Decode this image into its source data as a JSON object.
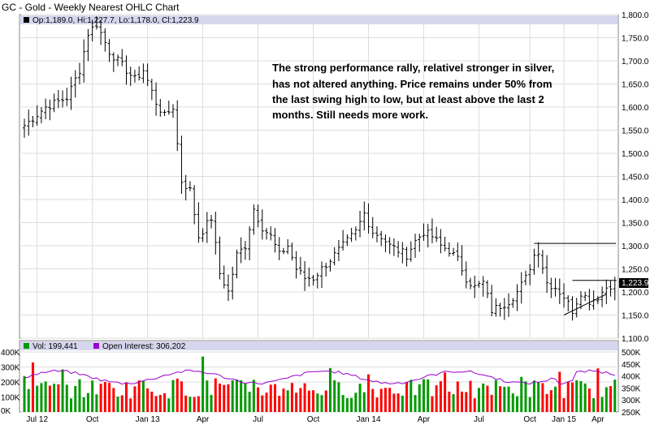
{
  "chart_data": {
    "type": "ohlc",
    "title": "GC - Gold - Weekly Nearest OHLC Chart",
    "ohlc_readout": "Op:1,189.0, Hi:1,227.7, Lo:1,178.0, Cl:1,223.9",
    "last_price_label": "1,223.9",
    "annotation": [
      "The strong performance rally, relativel stronger in silver,",
      "has not altered anything.  Price remains under 50% from",
      "the last swing high to low, but at least above the last 2",
      "months.  Still needs more work."
    ],
    "price_axis": {
      "min": 1100,
      "max": 1800,
      "ticks": [
        "1,800.0",
        "1,750.0",
        "1,700.0",
        "1,650.0",
        "1,600.0",
        "1,550.0",
        "1,500.0",
        "1,450.0",
        "1,400.0",
        "1,350.0",
        "1,300.0",
        "1,250.0",
        "1,200.0",
        "1,150.0",
        "1,100.0"
      ]
    },
    "x_labels": [
      "Jul 12",
      "Oct",
      "Jan 13",
      "Apr",
      "Jul",
      "Oct",
      "Jan 14",
      "Apr",
      "Jul",
      "Oct",
      "Jan 15",
      "Apr"
    ],
    "price_waypoints": [
      [
        0,
        1560
      ],
      [
        5,
        1600
      ],
      [
        10,
        1620
      ],
      [
        13,
        1680
      ],
      [
        15,
        1760
      ],
      [
        17,
        1780
      ],
      [
        20,
        1720
      ],
      [
        23,
        1690
      ],
      [
        26,
        1660
      ],
      [
        28,
        1680
      ],
      [
        31,
        1610
      ],
      [
        33,
        1580
      ],
      [
        35,
        1600
      ],
      [
        37,
        1440
      ],
      [
        39,
        1420
      ],
      [
        41,
        1320
      ],
      [
        44,
        1360
      ],
      [
        46,
        1240
      ],
      [
        48,
        1200
      ],
      [
        50,
        1280
      ],
      [
        52,
        1300
      ],
      [
        54,
        1380
      ],
      [
        56,
        1340
      ],
      [
        58,
        1320
      ],
      [
        60,
        1280
      ],
      [
        62,
        1300
      ],
      [
        64,
        1250
      ],
      [
        66,
        1230
      ],
      [
        68,
        1230
      ],
      [
        70,
        1250
      ],
      [
        72,
        1270
      ],
      [
        74,
        1290
      ],
      [
        76,
        1310
      ],
      [
        78,
        1330
      ],
      [
        80,
        1370
      ],
      [
        82,
        1330
      ],
      [
        84,
        1320
      ],
      [
        86,
        1300
      ],
      [
        88,
        1290
      ],
      [
        90,
        1280
      ],
      [
        92,
        1310
      ],
      [
        94,
        1330
      ],
      [
        96,
        1320
      ],
      [
        98,
        1300
      ],
      [
        100,
        1290
      ],
      [
        102,
        1270
      ],
      [
        104,
        1230
      ],
      [
        106,
        1210
      ],
      [
        108,
        1220
      ],
      [
        110,
        1160
      ],
      [
        112,
        1170
      ],
      [
        114,
        1180
      ],
      [
        116,
        1200
      ],
      [
        118,
        1230
      ],
      [
        120,
        1280
      ],
      [
        121,
        1290
      ],
      [
        123,
        1220
      ],
      [
        125,
        1210
      ],
      [
        127,
        1190
      ],
      [
        129,
        1160
      ],
      [
        131,
        1200
      ],
      [
        133,
        1180
      ],
      [
        135,
        1190
      ],
      [
        137,
        1210
      ],
      [
        139,
        1220
      ]
    ],
    "overlay_lines": [
      {
        "x1": 120,
        "y1": 1305,
        "x2": 139,
        "y2": 1305
      },
      {
        "x1": 129,
        "y1": 1225,
        "x2": 139,
        "y2": 1225
      },
      {
        "x1": 127,
        "y1": 1150,
        "x2": 137,
        "y2": 1195
      }
    ],
    "volume_axis": {
      "min": 0,
      "max": 400000,
      "left_ticks": [
        "400K",
        "300K",
        "200K",
        "100K",
        "0K"
      ]
    },
    "open_interest_axis": {
      "min": 250000,
      "max": 500000,
      "right_ticks": [
        "500K",
        "450K",
        "400K",
        "350K",
        "300K",
        "250K"
      ]
    },
    "legend": {
      "volume": "Vol: 199,441",
      "open_interest": "Open Interest: 306,202"
    },
    "colors": {
      "bar": "#000000",
      "up_volume": "#009900",
      "down_volume": "#ff0000",
      "open_interest": "#9900cc",
      "header_strip": "#d6d6ee",
      "grid": "#dddddd",
      "last_price_box": "#000000"
    }
  }
}
